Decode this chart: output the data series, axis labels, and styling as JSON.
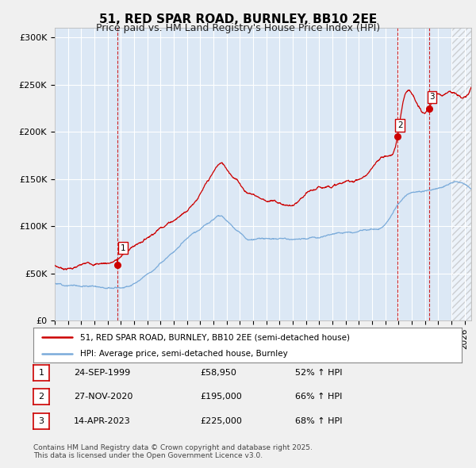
{
  "title": "51, RED SPAR ROAD, BURNLEY, BB10 2EE",
  "subtitle": "Price paid vs. HM Land Registry's House Price Index (HPI)",
  "red_label": "51, RED SPAR ROAD, BURNLEY, BB10 2EE (semi-detached house)",
  "blue_label": "HPI: Average price, semi-detached house, Burnley",
  "transactions": [
    {
      "num": 1,
      "date": "24-SEP-1999",
      "price": 58950,
      "pct": "52%",
      "dir": "↑"
    },
    {
      "num": 2,
      "date": "27-NOV-2020",
      "price": 195000,
      "pct": "66%",
      "dir": "↑"
    },
    {
      "num": 3,
      "date": "14-APR-2023",
      "price": 225000,
      "pct": "68%",
      "dir": "↑"
    }
  ],
  "footer": "Contains HM Land Registry data © Crown copyright and database right 2025.\nThis data is licensed under the Open Government Licence v3.0.",
  "ylim": [
    0,
    310000
  ],
  "yticks": [
    0,
    50000,
    100000,
    150000,
    200000,
    250000,
    300000
  ],
  "ytick_labels": [
    "£0",
    "£50K",
    "£100K",
    "£150K",
    "£200K",
    "£250K",
    "£300K"
  ],
  "background_color": "#f0f0f0",
  "plot_bg_color": "#dce8f5",
  "plot_bg_color2": "#ffffff",
  "red_color": "#cc0000",
  "blue_color": "#7aabda",
  "vline_color": "#cc0000",
  "grid_color": "#ffffff",
  "xlim_start": 1995,
  "xlim_end": 2026.5,
  "hatch_start": 2025.0
}
